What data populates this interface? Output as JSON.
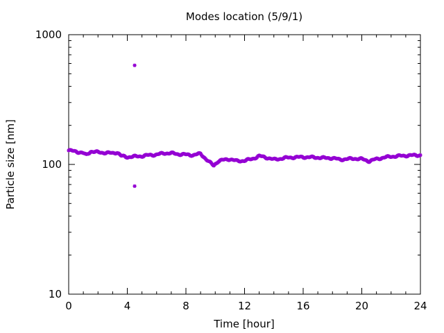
{
  "chart_data": {
    "type": "scatter",
    "title": "Modes location (5/9/1)",
    "xlabel": "Time [hour]",
    "ylabel": "Particle size [nm]",
    "xlim": [
      0,
      24
    ],
    "ylim": [
      10,
      1000
    ],
    "yscale": "log",
    "grid": false,
    "legend": "none",
    "x_ticks": [
      0,
      4,
      8,
      12,
      16,
      20,
      24
    ],
    "x_tick_labels": [
      "0",
      "4",
      "8",
      "12",
      "16",
      "20",
      "24"
    ],
    "y_ticks": [
      10,
      100,
      1000
    ],
    "y_tick_labels": [
      "10",
      "100",
      "1000"
    ],
    "marker_color": "#9400d3",
    "series": [
      {
        "profile": [
          [
            0.0,
            128
          ],
          [
            0.5,
            126
          ],
          [
            1.0,
            122
          ],
          [
            1.2,
            118
          ],
          [
            1.5,
            126
          ],
          [
            2.0,
            124
          ],
          [
            2.5,
            123
          ],
          [
            3.0,
            122
          ],
          [
            3.3,
            124
          ],
          [
            3.6,
            116
          ],
          [
            4.0,
            114
          ],
          [
            4.5,
            115
          ],
          [
            5.0,
            116
          ],
          [
            5.5,
            118
          ],
          [
            6.0,
            119
          ],
          [
            6.5,
            122
          ],
          [
            7.0,
            122
          ],
          [
            7.5,
            120
          ],
          [
            8.0,
            119
          ],
          [
            8.5,
            118
          ],
          [
            9.0,
            121
          ],
          [
            9.3,
            112
          ],
          [
            9.6,
            104
          ],
          [
            9.9,
            98
          ],
          [
            10.2,
            106
          ],
          [
            10.5,
            108
          ],
          [
            11.0,
            110
          ],
          [
            11.5,
            106
          ],
          [
            12.0,
            107
          ],
          [
            12.5,
            110
          ],
          [
            13.0,
            116
          ],
          [
            13.5,
            113
          ],
          [
            14.0,
            109
          ],
          [
            14.5,
            111
          ],
          [
            15.0,
            113
          ],
          [
            16.0,
            114
          ],
          [
            17.0,
            113
          ],
          [
            17.5,
            112
          ],
          [
            18.0,
            112
          ],
          [
            18.5,
            109
          ],
          [
            19.0,
            110
          ],
          [
            19.5,
            111
          ],
          [
            20.0,
            110
          ],
          [
            20.5,
            106
          ],
          [
            21.0,
            110
          ],
          [
            21.5,
            113
          ],
          [
            22.0,
            115
          ],
          [
            23.0,
            117
          ],
          [
            24.0,
            118
          ]
        ]
      },
      {
        "points": [
          [
            4.5,
            580
          ],
          [
            4.5,
            68
          ]
        ]
      }
    ]
  }
}
